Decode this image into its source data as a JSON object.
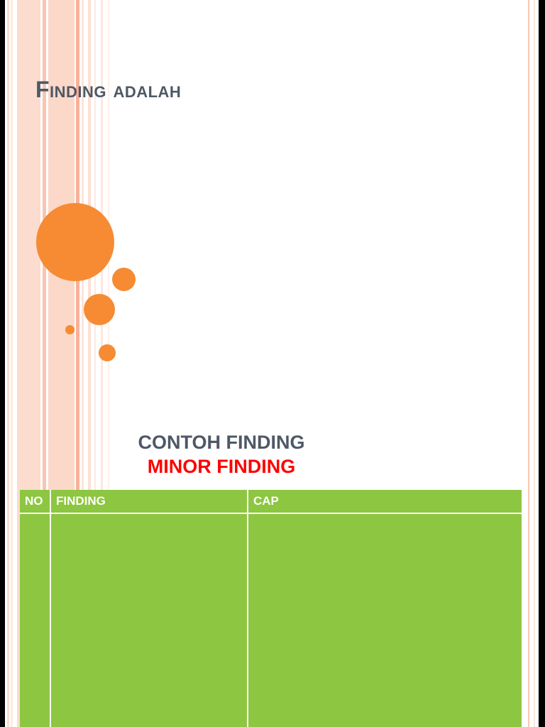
{
  "slide": {
    "title": "Finding adalah",
    "contoh_label": "CONTOH FINDING",
    "minor_label": "MINOR FINDING"
  },
  "table": {
    "headers": [
      "NO",
      "FINDING",
      "CAP"
    ],
    "rows": [
      [
        "",
        "",
        ""
      ]
    ]
  },
  "colors": {
    "orange": "#F68B33",
    "green": "#8DC641",
    "title": "#4E5866",
    "red": "#FF0000"
  }
}
